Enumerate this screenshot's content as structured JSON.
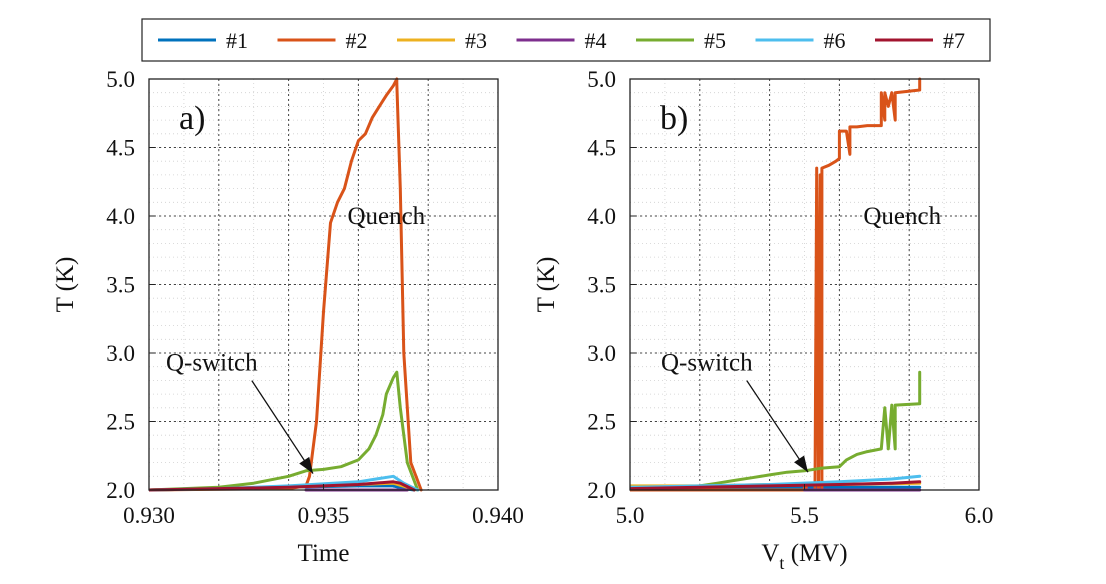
{
  "chart_data": [
    {
      "panel": "a)",
      "type": "line",
      "xlabel": "Time",
      "ylabel": "T (K)",
      "xlim": [
        0.93,
        0.94
      ],
      "ylim": [
        2.0,
        5.0
      ],
      "xticks": [
        "0.930",
        "0.935",
        "0.940"
      ],
      "xtick_values": [
        0.93,
        0.935,
        0.94
      ],
      "yticks": [
        "2.0",
        "2.5",
        "3.0",
        "3.5",
        "4.0",
        "4.5",
        "5.0"
      ],
      "ytick_values": [
        2.0,
        2.5,
        3.0,
        3.5,
        4.0,
        4.5,
        5.0
      ],
      "grid": true,
      "annotations": [
        {
          "text": "Quench",
          "x": 0.9368,
          "y": 4.0
        },
        {
          "text": "Q-switch",
          "x": 0.9318,
          "y": 2.93,
          "arrow_to": [
            0.9347,
            2.12
          ]
        }
      ],
      "series": [
        {
          "name": "#1",
          "x": [
            0.93,
            0.932,
            0.934,
            0.936,
            0.937,
            0.9373,
            0.9376
          ],
          "y": [
            2.0,
            2.01,
            2.02,
            2.03,
            2.03,
            2.01,
            2.0
          ]
        },
        {
          "name": "#2",
          "x": [
            0.93,
            0.932,
            0.934,
            0.9345,
            0.9346,
            0.9348,
            0.935,
            0.9352,
            0.9354,
            0.9356,
            0.9358,
            0.936,
            0.9362,
            0.9364,
            0.9366,
            0.9368,
            0.937,
            0.9371,
            0.9371,
            0.9372,
            0.9373,
            0.9375,
            0.9378
          ],
          "y": [
            2.0,
            2.005,
            2.01,
            2.03,
            2.1,
            2.5,
            3.3,
            3.95,
            4.1,
            4.2,
            4.4,
            4.55,
            4.6,
            4.72,
            4.8,
            4.88,
            4.95,
            5.0,
            4.97,
            4.2,
            3.0,
            2.2,
            2.0
          ]
        },
        {
          "name": "#3",
          "x": [
            0.93,
            0.932,
            0.934,
            0.936,
            0.937,
            0.9374,
            0.9377
          ],
          "y": [
            2.0,
            2.01,
            2.02,
            2.04,
            2.05,
            2.02,
            2.0
          ]
        },
        {
          "name": "#4",
          "x": [
            0.9345,
            0.936,
            0.937,
            0.9374
          ],
          "y": [
            2.0,
            2.0,
            2.0,
            2.0
          ]
        },
        {
          "name": "#5",
          "x": [
            0.93,
            0.931,
            0.932,
            0.933,
            0.934,
            0.9345,
            0.935,
            0.9355,
            0.936,
            0.9363,
            0.9365,
            0.9367,
            0.9368,
            0.937,
            0.9371,
            0.9372,
            0.9374,
            0.9377
          ],
          "y": [
            2.0,
            2.01,
            2.02,
            2.05,
            2.1,
            2.14,
            2.15,
            2.17,
            2.22,
            2.3,
            2.4,
            2.55,
            2.7,
            2.82,
            2.86,
            2.6,
            2.2,
            2.0
          ]
        },
        {
          "name": "#6",
          "x": [
            0.93,
            0.932,
            0.934,
            0.936,
            0.937,
            0.9373,
            0.9377
          ],
          "y": [
            2.0,
            2.01,
            2.03,
            2.06,
            2.1,
            2.05,
            2.0
          ]
        },
        {
          "name": "#7",
          "x": [
            0.93,
            0.932,
            0.934,
            0.936,
            0.937,
            0.9372,
            0.9376
          ],
          "y": [
            2.0,
            2.01,
            2.02,
            2.04,
            2.06,
            2.05,
            2.0
          ]
        }
      ]
    },
    {
      "panel": "b)",
      "type": "line",
      "xlabel": "V",
      "xlabel_sub": "t",
      "xlabel_unit": " (MV)",
      "ylabel": "T (K)",
      "xlim": [
        5.0,
        6.0
      ],
      "ylim": [
        2.0,
        5.0
      ],
      "xticks": [
        "5.0",
        "5.5",
        "6.0"
      ],
      "xtick_values": [
        5.0,
        5.5,
        6.0
      ],
      "yticks": [
        "2.0",
        "2.5",
        "3.0",
        "3.5",
        "4.0",
        "4.5",
        "5.0"
      ],
      "ytick_values": [
        2.0,
        2.5,
        3.0,
        3.5,
        4.0,
        4.5,
        5.0
      ],
      "grid": true,
      "annotations": [
        {
          "text": "Quench",
          "x": 5.78,
          "y": 4.0
        },
        {
          "text": "Q-switch",
          "x": 5.22,
          "y": 2.93,
          "arrow_to": [
            5.51,
            2.13
          ]
        }
      ],
      "series": [
        {
          "name": "#1",
          "x": [
            5.0,
            5.2,
            5.4,
            5.6,
            5.83
          ],
          "y": [
            2.02,
            2.02,
            2.02,
            2.02,
            2.02
          ]
        },
        {
          "name": "#2",
          "x": [
            5.0,
            5.3,
            5.5,
            5.5,
            5.505,
            5.505,
            5.53,
            5.535,
            5.54,
            5.545,
            5.55,
            5.55,
            5.57,
            5.59,
            5.6,
            5.6,
            5.62,
            5.63,
            5.63,
            5.65,
            5.68,
            5.72,
            5.72,
            5.73,
            5.73,
            5.74,
            5.75,
            5.76,
            5.76,
            5.83,
            5.83
          ],
          "y": [
            2.0,
            2.0,
            2.0,
            2.03,
            2.03,
            2.0,
            2.0,
            4.35,
            2.0,
            4.3,
            2.0,
            4.35,
            4.37,
            4.4,
            4.42,
            4.62,
            4.62,
            4.45,
            4.65,
            4.65,
            4.66,
            4.66,
            4.9,
            4.7,
            4.9,
            4.8,
            4.9,
            4.7,
            4.9,
            4.92,
            5.0
          ]
        },
        {
          "name": "#3",
          "x": [
            5.0,
            5.2,
            5.4,
            5.6,
            5.83
          ],
          "y": [
            2.03,
            2.03,
            2.04,
            2.04,
            2.05
          ]
        },
        {
          "name": "#4",
          "x": [
            5.5,
            5.6,
            5.7,
            5.83
          ],
          "y": [
            2.0,
            2.0,
            2.0,
            2.0
          ]
        },
        {
          "name": "#5",
          "x": [
            5.0,
            5.2,
            5.25,
            5.3,
            5.35,
            5.4,
            5.45,
            5.5,
            5.55,
            5.6,
            5.62,
            5.65,
            5.68,
            5.72,
            5.73,
            5.74,
            5.75,
            5.76,
            5.76,
            5.83,
            5.83
          ],
          "y": [
            2.01,
            2.03,
            2.05,
            2.07,
            2.09,
            2.11,
            2.13,
            2.14,
            2.16,
            2.17,
            2.22,
            2.26,
            2.28,
            2.3,
            2.6,
            2.3,
            2.62,
            2.3,
            2.62,
            2.63,
            2.86
          ]
        },
        {
          "name": "#6",
          "x": [
            5.0,
            5.2,
            5.4,
            5.6,
            5.75,
            5.83
          ],
          "y": [
            2.02,
            2.03,
            2.04,
            2.06,
            2.08,
            2.1
          ]
        },
        {
          "name": "#7",
          "x": [
            5.0,
            5.2,
            5.4,
            5.6,
            5.75,
            5.83
          ],
          "y": [
            2.01,
            2.02,
            2.03,
            2.04,
            2.05,
            2.06
          ]
        }
      ]
    }
  ],
  "legend": {
    "placement": "top",
    "items": [
      {
        "name": "#1",
        "color": "#0072BD"
      },
      {
        "name": "#2",
        "color": "#D95319"
      },
      {
        "name": "#3",
        "color": "#EDB120"
      },
      {
        "name": "#4",
        "color": "#7E2F8E"
      },
      {
        "name": "#5",
        "color": "#77AC30"
      },
      {
        "name": "#6",
        "color": "#4DBEEE"
      },
      {
        "name": "#7",
        "color": "#A2142F"
      }
    ]
  }
}
